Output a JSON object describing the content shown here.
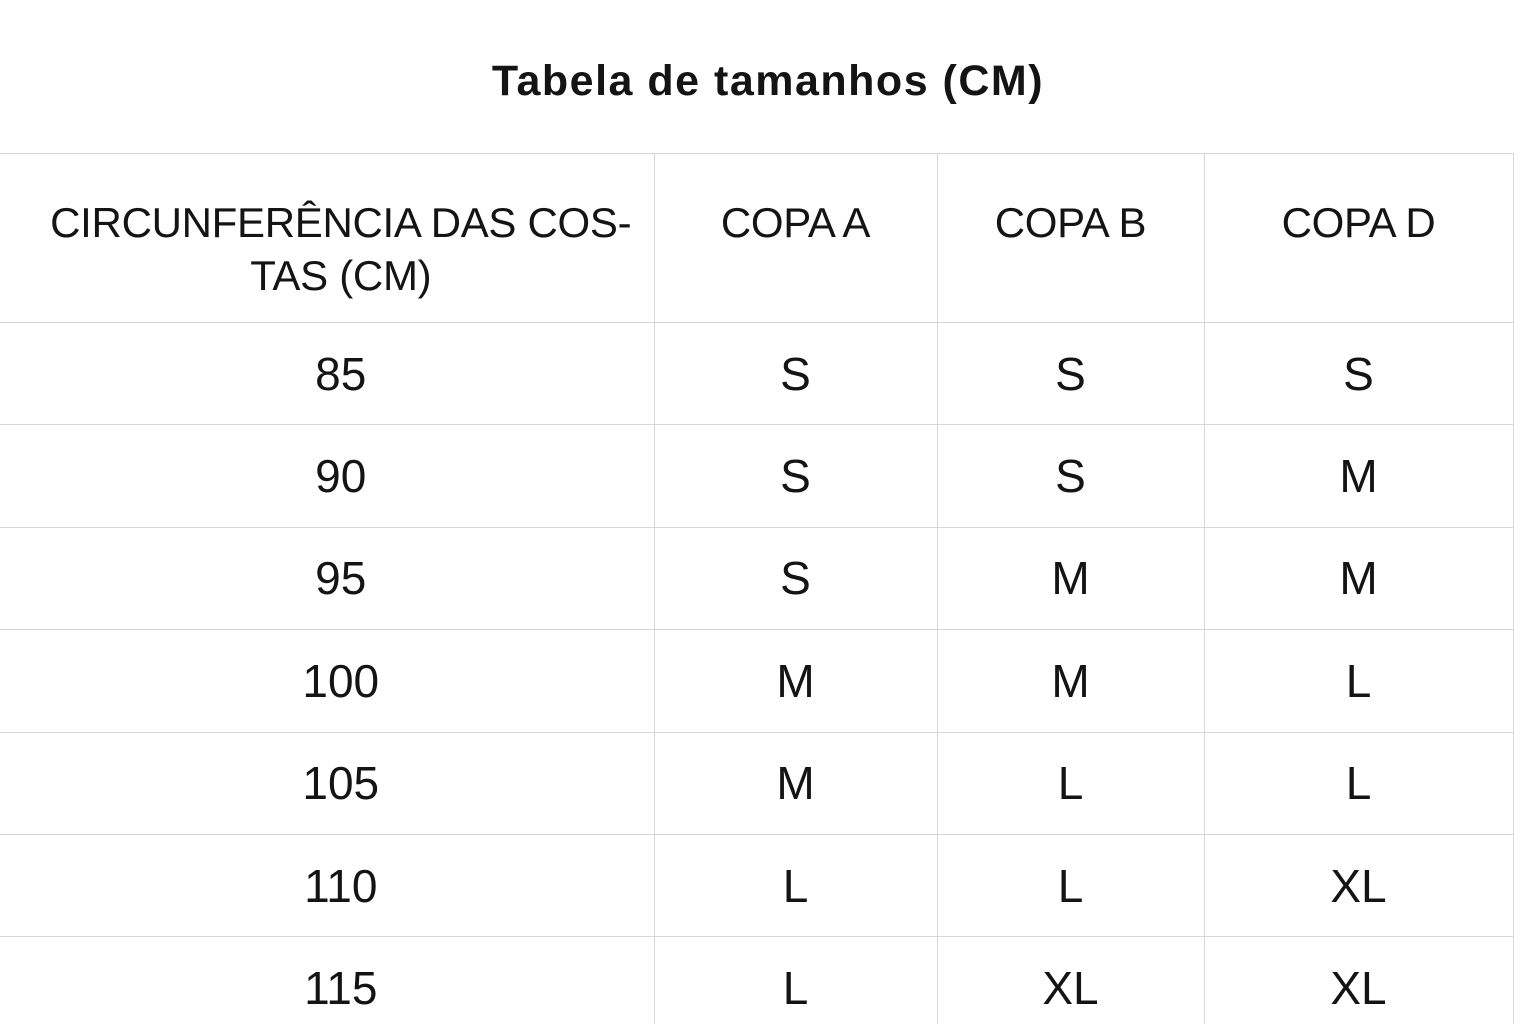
{
  "page": {
    "title": "Tabela de tamanhos (CM)"
  },
  "colors": {
    "text": "#141414",
    "border": "#d8d8d8",
    "background": "#ffffff"
  },
  "table": {
    "header": {
      "col1_label": "CIRCUNFERÊNCIA DAS COSTAS (CM)",
      "col1_line1": "CIRCUNFERÊNCIA DAS COS-",
      "col1_line2": "TAS (CM)",
      "col2_label": "COPA A",
      "col3_label": "COPA B",
      "col4_label": "COPA D"
    },
    "rows": [
      {
        "back_circumference": "85",
        "copa_a": "S",
        "copa_b": "S",
        "copa_d": "S"
      },
      {
        "back_circumference": "90",
        "copa_a": "S",
        "copa_b": "S",
        "copa_d": "M"
      },
      {
        "back_circumference": "95",
        "copa_a": "S",
        "copa_b": "M",
        "copa_d": "M"
      },
      {
        "back_circumference": "100",
        "copa_a": "M",
        "copa_b": "M",
        "copa_d": "L"
      },
      {
        "back_circumference": "105",
        "copa_a": "M",
        "copa_b": "L",
        "copa_d": "L"
      },
      {
        "back_circumference": "110",
        "copa_a": "L",
        "copa_b": "L",
        "copa_d": "XL"
      },
      {
        "back_circumference": "115",
        "copa_a": "L",
        "copa_b": "XL",
        "copa_d": "XL"
      }
    ]
  },
  "chart_data": {
    "type": "table",
    "title": "Tabela de tamanhos (CM)",
    "columns": [
      "CIRCUNFERÊNCIA DAS COSTAS (CM)",
      "COPA A",
      "COPA B",
      "COPA D"
    ],
    "rows": [
      [
        "85",
        "S",
        "S",
        "S"
      ],
      [
        "90",
        "S",
        "S",
        "M"
      ],
      [
        "95",
        "S",
        "M",
        "M"
      ],
      [
        "100",
        "M",
        "M",
        "L"
      ],
      [
        "105",
        "M",
        "L",
        "L"
      ],
      [
        "110",
        "L",
        "L",
        "XL"
      ],
      [
        "115",
        "L",
        "XL",
        "XL"
      ]
    ]
  }
}
